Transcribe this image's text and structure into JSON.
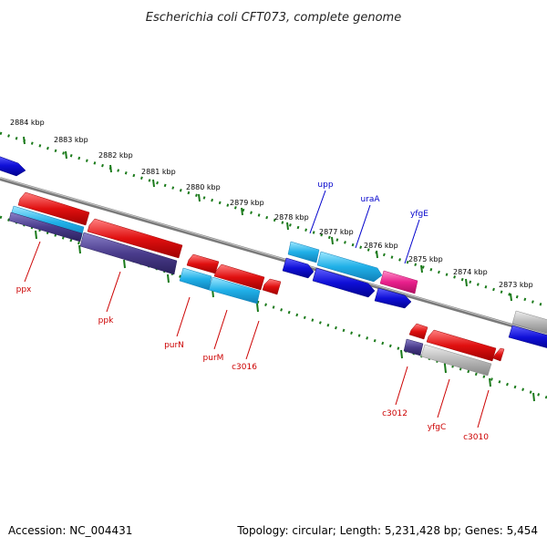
{
  "title": "Escherichia coli CFT073, complete genome",
  "footer": {
    "accession": "Accession: NC_004431",
    "topology": "Topology: circular; Length: 5,231,428 bp; Genes: 5,454"
  },
  "kbp_labels": [
    "2884 kbp",
    "2883 kbp",
    "2882 kbp",
    "2881 kbp",
    "2880 kbp",
    "2879 kbp",
    "2878 kbp",
    "2877 kbp",
    "2876 kbp",
    "2875 kbp",
    "2874 kbp",
    "2873 kbp"
  ],
  "forward_gene_labels": [
    "upp",
    "uraA",
    "yfgE"
  ],
  "reverse_gene_labels": [
    "ppx",
    "ppk",
    "purN",
    "purM",
    "c3016",
    "c3012",
    "yfgC",
    "c3010"
  ],
  "colors": {
    "red": "#e01010",
    "blue": "#1010d8",
    "cyan": "#20b0e8",
    "purple": "#4a3c8c",
    "pink": "#e8208c",
    "gray": "#b8b8b8",
    "backbone": "#7a7a7a",
    "tick": "#1a7a1a",
    "label_blue": "#0000cc",
    "label_red": "#cc0000"
  }
}
